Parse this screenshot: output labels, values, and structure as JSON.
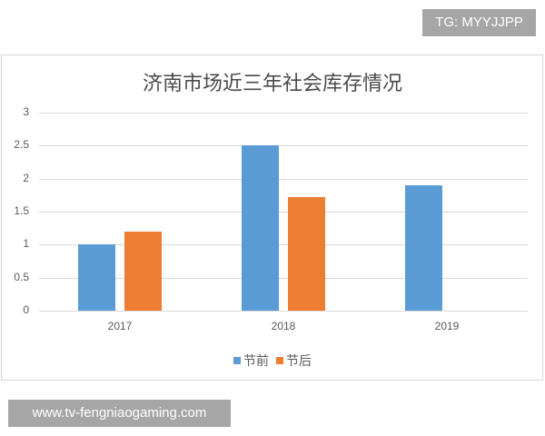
{
  "watermarks": {
    "top": "TG: MYYJJPP",
    "bottom": "www.tv-fengniaogaming.com"
  },
  "colors": {
    "series_before": "#5b9bd5",
    "series_after": "#ed7d31"
  },
  "chart_data": {
    "type": "bar",
    "title": "济南市场近三年社会库存情况",
    "categories": [
      "2017",
      "2018",
      "2019"
    ],
    "series": [
      {
        "name": "节前",
        "values": [
          1.0,
          2.5,
          1.9
        ]
      },
      {
        "name": "节后",
        "values": [
          1.2,
          1.72,
          null
        ]
      }
    ],
    "xlabel": "",
    "ylabel": "",
    "ylim": [
      0,
      3
    ],
    "yticks": [
      "0",
      "0.5",
      "1",
      "1.5",
      "2",
      "2.5",
      "3"
    ],
    "grid": true,
    "legend_position": "bottom"
  }
}
